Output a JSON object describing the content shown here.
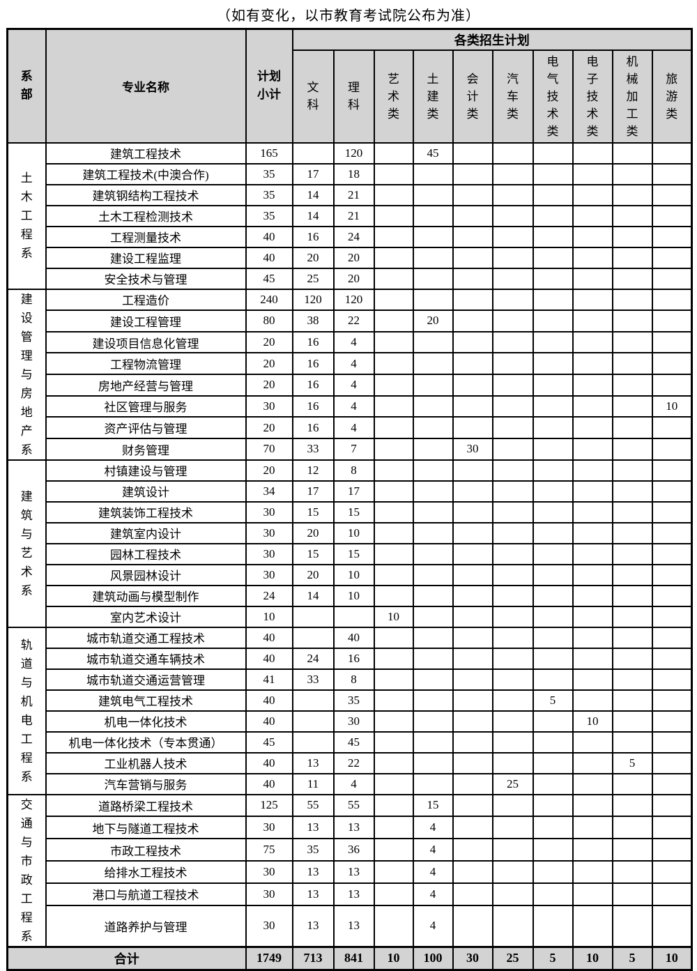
{
  "title": "（如有变化，以市教育考试院公布为准）",
  "table": {
    "header": {
      "dept": "系部",
      "major": "专业名称",
      "subtotal": "计划小计",
      "group": "各类招生计划",
      "categories": [
        "文科",
        "理科",
        "艺术类",
        "土建类",
        "会计类",
        "汽车类",
        "电气技术类",
        "电子技术类",
        "机械加工类",
        "旅游类"
      ]
    },
    "departments": [
      {
        "name": "土木工程系",
        "majors": [
          {
            "name": "建筑工程技术",
            "subtotal": "165",
            "values": [
              "",
              "120",
              "",
              "45",
              "",
              "",
              "",
              "",
              "",
              ""
            ]
          },
          {
            "name": "建筑工程技术(中澳合作)",
            "subtotal": "35",
            "values": [
              "17",
              "18",
              "",
              "",
              "",
              "",
              "",
              "",
              "",
              ""
            ]
          },
          {
            "name": "建筑钢结构工程技术",
            "subtotal": "35",
            "values": [
              "14",
              "21",
              "",
              "",
              "",
              "",
              "",
              "",
              "",
              ""
            ]
          },
          {
            "name": "土木工程检测技术",
            "subtotal": "35",
            "values": [
              "14",
              "21",
              "",
              "",
              "",
              "",
              "",
              "",
              "",
              ""
            ]
          },
          {
            "name": "工程测量技术",
            "subtotal": "40",
            "values": [
              "16",
              "24",
              "",
              "",
              "",
              "",
              "",
              "",
              "",
              ""
            ]
          },
          {
            "name": "建设工程监理",
            "subtotal": "40",
            "values": [
              "20",
              "20",
              "",
              "",
              "",
              "",
              "",
              "",
              "",
              ""
            ]
          },
          {
            "name": "安全技术与管理",
            "subtotal": "45",
            "values": [
              "25",
              "20",
              "",
              "",
              "",
              "",
              "",
              "",
              "",
              ""
            ]
          }
        ]
      },
      {
        "name": "建设管理与房地产系",
        "majors": [
          {
            "name": "工程造价",
            "subtotal": "240",
            "values": [
              "120",
              "120",
              "",
              "",
              "",
              "",
              "",
              "",
              "",
              ""
            ]
          },
          {
            "name": "建设工程管理",
            "subtotal": "80",
            "values": [
              "38",
              "22",
              "",
              "20",
              "",
              "",
              "",
              "",
              "",
              ""
            ]
          },
          {
            "name": "建设项目信息化管理",
            "subtotal": "20",
            "values": [
              "16",
              "4",
              "",
              "",
              "",
              "",
              "",
              "",
              "",
              ""
            ]
          },
          {
            "name": "工程物流管理",
            "subtotal": "20",
            "values": [
              "16",
              "4",
              "",
              "",
              "",
              "",
              "",
              "",
              "",
              ""
            ]
          },
          {
            "name": "房地产经营与管理",
            "subtotal": "20",
            "values": [
              "16",
              "4",
              "",
              "",
              "",
              "",
              "",
              "",
              "",
              ""
            ]
          },
          {
            "name": "社区管理与服务",
            "subtotal": "30",
            "values": [
              "16",
              "4",
              "",
              "",
              "",
              "",
              "",
              "",
              "",
              "10"
            ]
          },
          {
            "name": "资产评估与管理",
            "subtotal": "20",
            "values": [
              "16",
              "4",
              "",
              "",
              "",
              "",
              "",
              "",
              "",
              ""
            ]
          },
          {
            "name": "财务管理",
            "subtotal": "70",
            "values": [
              "33",
              "7",
              "",
              "",
              "30",
              "",
              "",
              "",
              "",
              ""
            ]
          }
        ]
      },
      {
        "name": "建筑与艺术系",
        "majors": [
          {
            "name": "村镇建设与管理",
            "subtotal": "20",
            "values": [
              "12",
              "8",
              "",
              "",
              "",
              "",
              "",
              "",
              "",
              ""
            ]
          },
          {
            "name": "建筑设计",
            "subtotal": "34",
            "values": [
              "17",
              "17",
              "",
              "",
              "",
              "",
              "",
              "",
              "",
              ""
            ]
          },
          {
            "name": "建筑装饰工程技术",
            "subtotal": "30",
            "values": [
              "15",
              "15",
              "",
              "",
              "",
              "",
              "",
              "",
              "",
              ""
            ]
          },
          {
            "name": "建筑室内设计",
            "subtotal": "30",
            "values": [
              "20",
              "10",
              "",
              "",
              "",
              "",
              "",
              "",
              "",
              ""
            ]
          },
          {
            "name": "园林工程技术",
            "subtotal": "30",
            "values": [
              "15",
              "15",
              "",
              "",
              "",
              "",
              "",
              "",
              "",
              ""
            ]
          },
          {
            "name": "风景园林设计",
            "subtotal": "30",
            "values": [
              "20",
              "10",
              "",
              "",
              "",
              "",
              "",
              "",
              "",
              ""
            ]
          },
          {
            "name": "建筑动画与模型制作",
            "subtotal": "24",
            "values": [
              "14",
              "10",
              "",
              "",
              "",
              "",
              "",
              "",
              "",
              ""
            ]
          },
          {
            "name": "室内艺术设计",
            "subtotal": "10",
            "values": [
              "",
              "",
              "10",
              "",
              "",
              "",
              "",
              "",
              "",
              ""
            ]
          }
        ]
      },
      {
        "name": "轨道与机电工程系",
        "majors": [
          {
            "name": "城市轨道交通工程技术",
            "subtotal": "40",
            "values": [
              "",
              "40",
              "",
              "",
              "",
              "",
              "",
              "",
              "",
              ""
            ]
          },
          {
            "name": "城市轨道交通车辆技术",
            "subtotal": "40",
            "values": [
              "24",
              "16",
              "",
              "",
              "",
              "",
              "",
              "",
              "",
              ""
            ]
          },
          {
            "name": "城市轨道交通运营管理",
            "subtotal": "41",
            "values": [
              "33",
              "8",
              "",
              "",
              "",
              "",
              "",
              "",
              "",
              ""
            ]
          },
          {
            "name": "建筑电气工程技术",
            "subtotal": "40",
            "values": [
              "",
              "35",
              "",
              "",
              "",
              "",
              "5",
              "",
              "",
              ""
            ]
          },
          {
            "name": "机电一体化技术",
            "subtotal": "40",
            "values": [
              "",
              "30",
              "",
              "",
              "",
              "",
              "",
              "10",
              "",
              ""
            ]
          },
          {
            "name": "机电一体化技术（专本贯通）",
            "subtotal": "45",
            "values": [
              "",
              "45",
              "",
              "",
              "",
              "",
              "",
              "",
              "",
              ""
            ]
          },
          {
            "name": "工业机器人技术",
            "subtotal": "40",
            "values": [
              "13",
              "22",
              "",
              "",
              "",
              "",
              "",
              "",
              "5",
              ""
            ]
          },
          {
            "name": "汽车营销与服务",
            "subtotal": "40",
            "values": [
              "11",
              "4",
              "",
              "",
              "",
              "25",
              "",
              "",
              "",
              ""
            ]
          }
        ]
      },
      {
        "name": "交通与市政工程系",
        "majors": [
          {
            "name": "道路桥梁工程技术",
            "subtotal": "125",
            "values": [
              "55",
              "55",
              "",
              "15",
              "",
              "",
              "",
              "",
              "",
              ""
            ]
          },
          {
            "name": "地下与隧道工程技术",
            "subtotal": "30",
            "values": [
              "13",
              "13",
              "",
              "4",
              "",
              "",
              "",
              "",
              "",
              ""
            ]
          },
          {
            "name": "市政工程技术",
            "subtotal": "75",
            "values": [
              "35",
              "36",
              "",
              "4",
              "",
              "",
              "",
              "",
              "",
              ""
            ]
          },
          {
            "name": "给排水工程技术",
            "subtotal": "30",
            "values": [
              "13",
              "13",
              "",
              "4",
              "",
              "",
              "",
              "",
              "",
              ""
            ]
          },
          {
            "name": "港口与航道工程技术",
            "subtotal": "30",
            "values": [
              "13",
              "13",
              "",
              "4",
              "",
              "",
              "",
              "",
              "",
              ""
            ]
          },
          {
            "name": "道路养护与管理",
            "subtotal": "30",
            "values": [
              "13",
              "13",
              "",
              "4",
              "",
              "",
              "",
              "",
              "",
              ""
            ]
          }
        ]
      }
    ],
    "total": {
      "label": "合计",
      "subtotal": "1749",
      "values": [
        "713",
        "841",
        "10",
        "100",
        "30",
        "25",
        "5",
        "10",
        "5",
        "10"
      ]
    }
  }
}
